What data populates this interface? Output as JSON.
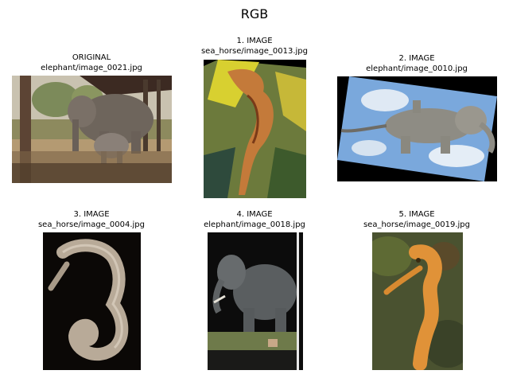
{
  "figure": {
    "title": "RGB"
  },
  "panels": [
    {
      "line1": "ORIGINAL",
      "line2": "elephant/image_0021.jpg",
      "subject": "elephants in shade of tree"
    },
    {
      "line1": "1. IMAGE",
      "line2": "sea_horse/image_0013.jpg",
      "subject": "rotated seahorse"
    },
    {
      "line1": "2. IMAGE",
      "line2": "elephant/image_0010.jpg",
      "subject": "flying elephant against sky, rotated"
    },
    {
      "line1": "3. IMAGE",
      "line2": "sea_horse/image_0004.jpg",
      "subject": "seahorse fossil on black"
    },
    {
      "line1": "4. IMAGE",
      "line2": "elephant/image_0018.jpg",
      "subject": "elephant mount on dark background"
    },
    {
      "line1": "5. IMAGE",
      "line2": "sea_horse/image_0019.jpg",
      "subject": "orange seahorse"
    }
  ]
}
